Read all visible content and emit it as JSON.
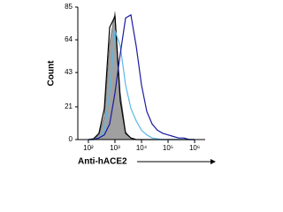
{
  "chart_data": {
    "type": "line",
    "x_label": "Anti-hACE2",
    "y_label": "Count",
    "x": [
      100,
      158,
      251,
      398,
      631,
      1000,
      1585,
      2512,
      3981,
      6310,
      10000,
      15849,
      25119,
      39811,
      63096,
      100000,
      158489,
      251189,
      398107,
      630957,
      1000000
    ],
    "series": [
      {
        "color": "#a0a0a0",
        "fill": true,
        "values": [
          0,
          0.5,
          3,
          15,
          62,
          82,
          30,
          5,
          1,
          0,
          0,
          0,
          0,
          0,
          0,
          0,
          0,
          0,
          0,
          0,
          0
        ]
      },
      {
        "color": "#000000",
        "values": [
          0,
          0.5,
          4,
          20,
          72,
          79,
          25,
          4,
          1,
          0,
          0,
          0,
          0,
          0,
          0,
          0,
          0,
          0,
          0,
          0,
          0
        ]
      },
      {
        "color": "#5bb8e8",
        "values": [
          0,
          0,
          1,
          6,
          30,
          70,
          60,
          35,
          20,
          12,
          6,
          3,
          1,
          0.5,
          0,
          0,
          0,
          0,
          0,
          0,
          0
        ]
      },
      {
        "color": "#1a1aa0",
        "values": [
          0,
          0,
          1,
          3,
          10,
          30,
          55,
          78,
          80,
          60,
          35,
          18,
          10,
          6,
          4,
          3,
          2,
          1,
          1,
          0,
          0
        ]
      }
    ],
    "xlim": [
      40,
      2500000
    ],
    "log_x": true,
    "xticks": [
      {
        "value": 100,
        "label": "10²"
      },
      {
        "value": 1000,
        "label": "10³"
      },
      {
        "value": 10000,
        "label": "10⁴"
      },
      {
        "value": 100000,
        "label": "10⁵"
      },
      {
        "value": 1000000,
        "label": "10⁶"
      }
    ],
    "ylim": [
      0,
      85
    ],
    "yticks": [
      0,
      21,
      43,
      64,
      85
    ]
  }
}
